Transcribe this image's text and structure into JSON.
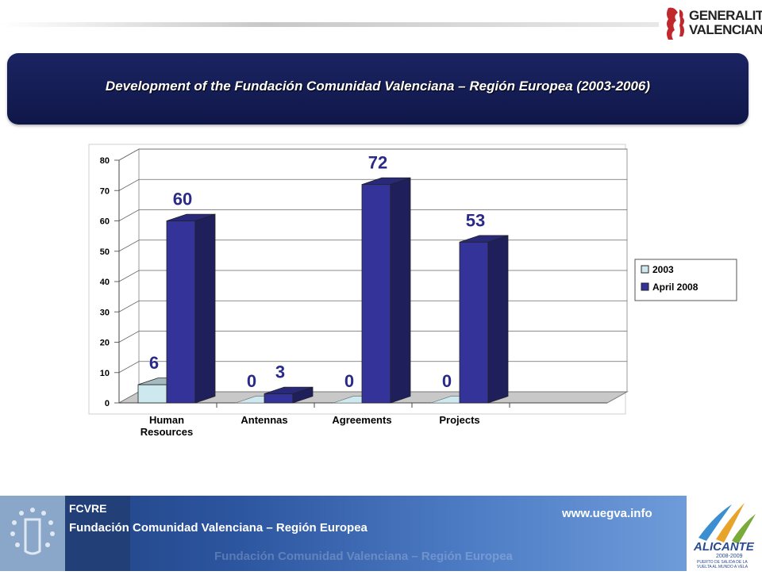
{
  "header": {
    "logo_lines": [
      "GENERALITAT",
      "VALENCIANA"
    ]
  },
  "title": "Development of the Fundación Comunidad Valenciana – Región Europea (2003-2006)",
  "chart_data": {
    "type": "bar",
    "categories": [
      "Human Resources",
      "Antennas",
      "Agreements",
      "Projects"
    ],
    "series": [
      {
        "name": "2003",
        "values": [
          6,
          0,
          0,
          0
        ],
        "color": "#cde8ee"
      },
      {
        "name": "April 2008",
        "values": [
          60,
          3,
          72,
          53
        ],
        "color": "#333399"
      }
    ],
    "ylim": [
      0,
      80
    ],
    "yticks": [
      0,
      10,
      20,
      30,
      40,
      50,
      60,
      70,
      80
    ],
    "legend": "right",
    "grid": true
  },
  "footer": {
    "org_short": "FCVRE",
    "org_name": "Fundación Comunidad Valenciana – Región Europea",
    "url": "www.uegva.info",
    "ghost_text": "Fundación Comunidad Valenciana – Región Europea"
  },
  "alicante_logo": {
    "name": "ALICANTE",
    "years": "2008-2009",
    "line1": "PUERTO DE SALIDA DE LA",
    "line2": "VUELTA AL MUNDO A VELA"
  }
}
